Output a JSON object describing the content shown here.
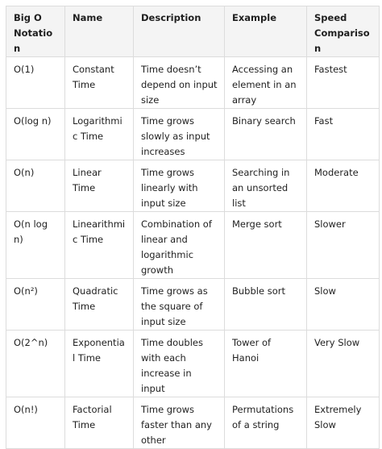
{
  "table": {
    "header": [
      "Big O Notation",
      "Name",
      "Description",
      "Example",
      "Speed Comparison"
    ],
    "rows": [
      [
        "O(1)",
        "Constant Time",
        "Time doesn’t depend on input size",
        "Accessing an element in an array",
        "Fastest"
      ],
      [
        "O(log n)",
        "Logarithmic Time",
        "Time grows slowly as input increases",
        "Binary search",
        "Fast"
      ],
      [
        "O(n)",
        "Linear Time",
        "Time grows linearly with input size",
        "Searching in an unsorted list",
        "Moderate"
      ],
      [
        "O(n log n)",
        "Linearithmic Time",
        "Combination of linear and logarithmic growth",
        "Merge sort",
        "Slower"
      ],
      [
        "O(n²)",
        "Quadratic Time",
        "Time grows as the square of input size",
        "Bubble sort",
        "Slow"
      ],
      [
        "O(2^n)",
        "Exponential Time",
        "Time doubles with each increase in input",
        "Tower of Hanoi",
        "Very Slow"
      ],
      [
        "O(n!)",
        "Factorial Time",
        "Time grows faster than any other",
        "Permutations of a string",
        "Extremely Slow"
      ]
    ]
  }
}
